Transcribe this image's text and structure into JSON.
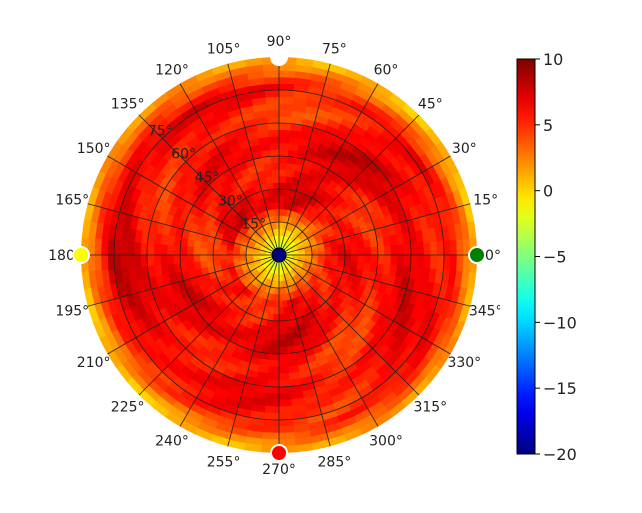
{
  "chart_data": {
    "type": "heatmap",
    "projection": "polar",
    "title": "",
    "theta_tick_labels": [
      "0°",
      "15°",
      "30°",
      "45°",
      "60°",
      "75°",
      "90°",
      "105°",
      "120°",
      "135°",
      "150°",
      "165°",
      "180°",
      "195°",
      "210°",
      "225°",
      "240°",
      "255°",
      "270°",
      "285°",
      "300°",
      "315°",
      "330°",
      "345°"
    ],
    "theta_ticks_deg": [
      0,
      15,
      30,
      45,
      60,
      75,
      90,
      105,
      120,
      135,
      150,
      165,
      180,
      195,
      210,
      225,
      240,
      255,
      270,
      285,
      300,
      315,
      330,
      345
    ],
    "radial_tick_labels": [
      "15°",
      "30°",
      "45°",
      "60°",
      "75°"
    ],
    "radial_ticks_deg": [
      15,
      30,
      45,
      60,
      75
    ],
    "radial_max_deg": 90,
    "radial_label_angle_deg": 135,
    "colormap": "jet",
    "colorbar": {
      "min": -20,
      "max": 10,
      "ticks": [
        -20,
        -15,
        -10,
        -5,
        0,
        5,
        10
      ]
    },
    "value_description": "Intensity field: near -20 at center, rising to ~5-8 (red) over most of the disk, ~0-2 (yellow) near edge",
    "markers": [
      {
        "name": "marker-0deg",
        "theta_deg": 0,
        "r_deg": 90,
        "color": "#008000"
      },
      {
        "name": "marker-90deg",
        "theta_deg": 90,
        "r_deg": 90,
        "color": "#ffffff"
      },
      {
        "name": "marker-180deg",
        "theta_deg": 180,
        "r_deg": 90,
        "color": "#ffff00"
      },
      {
        "name": "marker-270deg",
        "theta_deg": 270,
        "r_deg": 90,
        "color": "#ff0000"
      },
      {
        "name": "marker-center",
        "theta_deg": 0,
        "r_deg": 0,
        "color": "#000080"
      }
    ]
  }
}
